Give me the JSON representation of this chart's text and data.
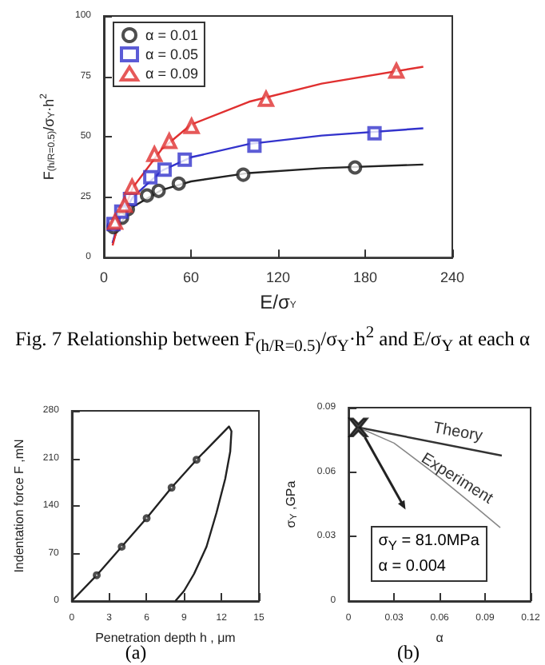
{
  "chart_data": [
    {
      "type": "scatter",
      "xlabel": "E/σ$_{Y}$",
      "ylabel": "F$_{(h/R=0.5)}$/σ$_{Y}$·h$^{2}$",
      "xlim": [
        0,
        240
      ],
      "xticks": [
        0,
        60,
        120,
        180,
        240
      ],
      "ylim": [
        0,
        100
      ],
      "yticks": [
        0,
        25,
        50,
        75,
        100
      ],
      "legend": "top left",
      "annotations": [
        "Fig. 7 Relationship between F$_{(h/R=0.5)}$/σ$_{Y}$·h$^{2}$ and E/σ$_{Y}$ at each α"
      ],
      "series": [
        {
          "name": "α = 0.01",
          "marker": "circle",
          "color": "#222222",
          "x": [
            6.6,
            12.5,
            16.5,
            29.7,
            37.7,
            51.6,
            96,
            173
          ],
          "values": [
            12.6,
            16.5,
            20,
            25.7,
            27.6,
            30.6,
            34.3,
            37.3
          ]
        },
        {
          "name": "α = 0.05",
          "marker": "square",
          "color": "#3333cc",
          "x": [
            6.6,
            12,
            18,
            32,
            41.8,
            55.7,
            103.7,
            186.4
          ],
          "values": [
            13.9,
            19,
            24.2,
            33.2,
            36.4,
            40.5,
            46.3,
            51.4
          ]
        },
        {
          "name": "α = 0.09",
          "marker": "triangle",
          "color": "#e03030",
          "x": [
            7.7,
            14.3,
            19.4,
            34.8,
            45,
            60.4,
            111.7,
            201.5
          ],
          "values": [
            14.8,
            21.8,
            29.3,
            42.8,
            48.2,
            54.4,
            65.7,
            77.3
          ]
        },
        {
          "type": "line",
          "color": "#222222",
          "x": [
            6,
            10,
            20,
            40,
            60,
            100,
            150,
            220
          ],
          "values": [
            6,
            13,
            21,
            28,
            31.5,
            35,
            37,
            38.5
          ]
        },
        {
          "type": "line",
          "color": "#3333cc",
          "x": [
            6,
            10,
            20,
            40,
            60,
            100,
            150,
            220
          ],
          "values": [
            6,
            15,
            25,
            36,
            41.5,
            47,
            50.5,
            53.5
          ]
        },
        {
          "type": "line",
          "color": "#e03030",
          "x": [
            6,
            10,
            20,
            40,
            60,
            100,
            150,
            220
          ],
          "values": [
            5,
            14,
            29,
            45,
            55,
            64.5,
            72,
            79
          ]
        }
      ]
    },
    {
      "type": "line",
      "xlabel": "Penetration depth h , μm",
      "ylabel": "Indentation force F ,mN",
      "xlim": [
        0,
        15
      ],
      "xticks": [
        0,
        3,
        6,
        9,
        12,
        15
      ],
      "ylim": [
        0,
        280
      ],
      "yticks": [
        0,
        70,
        140,
        210,
        280
      ],
      "annotations": [
        "(a)"
      ],
      "series": [
        {
          "color": "#222222",
          "x": [
            0,
            2,
            4,
            6,
            8,
            10,
            12.6,
            12.8,
            12.7,
            12.3,
            11.6,
            10.8,
            9.8,
            9,
            8.3
          ],
          "values": [
            0,
            38,
            80,
            122,
            167,
            208,
            257,
            250,
            220,
            180,
            130,
            80,
            40,
            15,
            0
          ]
        },
        {
          "type": "scatter",
          "marker": "circle",
          "color": "#222222",
          "x": [
            2,
            4,
            6,
            8,
            10
          ],
          "values": [
            38,
            80,
            122,
            167,
            208
          ]
        }
      ]
    },
    {
      "type": "line",
      "xlabel": "α",
      "ylabel": "σ$_{Y}$ ,GPa",
      "xlim": [
        0,
        0.12
      ],
      "xticks": [
        0,
        0.03,
        0.06,
        0.09,
        0.12
      ],
      "ylim": [
        0,
        0.09
      ],
      "yticks": [
        0,
        0.03,
        0.06,
        0.09
      ],
      "annotations": [
        "σ$_{Y}$ = 81.0MPa",
        "α = 0.004",
        "(b)"
      ],
      "series": [
        {
          "name": "Theory",
          "color": "#333333",
          "x": [
            0.0065,
            0.101
          ],
          "values": [
            0.0808,
            0.0677
          ]
        },
        {
          "name": "Experiment",
          "color": "#888888",
          "x": [
            0.0065,
            0.03,
            0.06,
            0.08,
            0.1
          ],
          "values": [
            0.0808,
            0.0735,
            0.0575,
            0.046,
            0.0342
          ]
        },
        {
          "type": "scatter",
          "marker": "cross",
          "color": "#111111",
          "x": [
            0.0065
          ],
          "values": [
            0.0808
          ]
        }
      ]
    }
  ]
}
